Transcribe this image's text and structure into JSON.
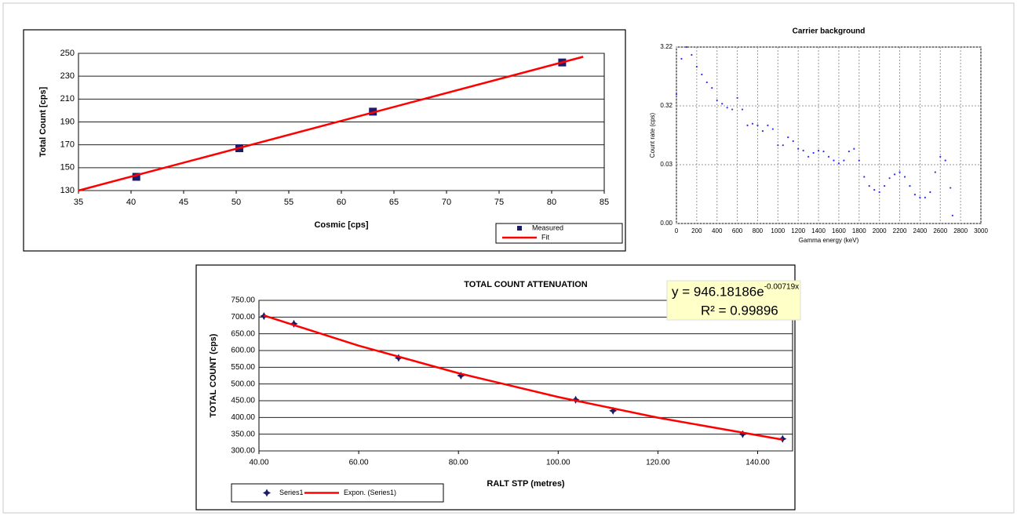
{
  "chart_data": [
    {
      "type": "scatter",
      "xlabel": "Cosmic [cps]",
      "ylabel": "Total Count [cps]",
      "xlim": [
        35,
        85
      ],
      "ylim": [
        130,
        250
      ],
      "xticks": [
        35,
        40,
        45,
        50,
        55,
        60,
        65,
        70,
        75,
        80,
        85
      ],
      "yticks": [
        130,
        150,
        170,
        190,
        210,
        230,
        250
      ],
      "grid": "y",
      "grid_style": "solid",
      "legend": "bottom-right",
      "series": [
        {
          "name": "Measured",
          "type": "scatter",
          "marker": "square",
          "color": "#1c1c6e",
          "x": [
            40.5,
            50.3,
            63,
            81
          ],
          "values": [
            142,
            167,
            199,
            242
          ]
        },
        {
          "name": "Fit",
          "type": "line",
          "color": "#ff0000",
          "x": [
            35,
            83
          ],
          "values": [
            130,
            247
          ]
        }
      ]
    },
    {
      "type": "scatter",
      "title": "Carrier background",
      "xlabel": "Gamma energy (keV)",
      "ylabel": "Count rate (cps)",
      "log": true,
      "xlim": [
        0,
        3000
      ],
      "ylim": [
        0.00322,
        3.22
      ],
      "xticks": [
        0,
        200,
        400,
        600,
        800,
        1000,
        1200,
        1400,
        1600,
        1800,
        2000,
        2200,
        2400,
        2600,
        2800,
        3000
      ],
      "yticks": [
        {
          "value": 0.00322,
          "label": "0.00"
        },
        {
          "value": 0.0322,
          "label": "0.03"
        },
        {
          "value": 0.322,
          "label": "0.32"
        },
        3.22
      ],
      "grid": "both",
      "grid_style": "dotted",
      "series": [
        {
          "type": "scatter",
          "marker": "dot",
          "color": "#2b2bff",
          "x": [
            0,
            50,
            100,
            150,
            200,
            250,
            300,
            350,
            400,
            450,
            500,
            550,
            600,
            650,
            700,
            750,
            800,
            850,
            900,
            950,
            1000,
            1050,
            1100,
            1150,
            1200,
            1250,
            1300,
            1350,
            1400,
            1450,
            1500,
            1550,
            1600,
            1650,
            1700,
            1750,
            1800,
            1850,
            1900,
            1950,
            2000,
            2050,
            2100,
            2150,
            2200,
            2250,
            2300,
            2350,
            2400,
            2450,
            2500,
            2550,
            2600,
            2650,
            2700,
            2720
          ],
          "values": [
            0.51,
            2.03,
            3.22,
            2.37,
            1.49,
            1.1,
            0.81,
            0.65,
            0.4,
            0.35,
            0.3,
            0.28,
            0.44,
            0.28,
            0.15,
            0.16,
            0.15,
            0.12,
            0.15,
            0.13,
            0.069,
            0.069,
            0.094,
            0.081,
            0.06,
            0.056,
            0.044,
            0.051,
            0.056,
            0.054,
            0.044,
            0.038,
            0.034,
            0.038,
            0.054,
            0.06,
            0.038,
            0.02,
            0.014,
            0.012,
            0.011,
            0.014,
            0.019,
            0.022,
            0.024,
            0.02,
            0.014,
            0.01,
            0.0089,
            0.0089,
            0.011,
            0.024,
            0.044,
            0.038,
            0.013,
            0.0044
          ]
        }
      ]
    },
    {
      "type": "scatter",
      "title": "TOTAL COUNT ATTENUATION",
      "xlabel": "RALT STP (metres)",
      "ylabel": "TOTAL COUNT (cps)",
      "xlim": [
        40,
        147
      ],
      "ylim": [
        300,
        750
      ],
      "xticks": [
        {
          "value": 40,
          "label": "40.00"
        },
        {
          "value": 60,
          "label": "60.00"
        },
        {
          "value": 80,
          "label": "80.00"
        },
        {
          "value": 100,
          "label": "100.00"
        },
        {
          "value": 120,
          "label": "120.00"
        },
        {
          "value": 140,
          "label": "140.00"
        }
      ],
      "yticks": [
        {
          "value": 300,
          "label": "300.00"
        },
        {
          "value": 350,
          "label": "350.00"
        },
        {
          "value": 400,
          "label": "400.00"
        },
        {
          "value": 450,
          "label": "450.00"
        },
        {
          "value": 500,
          "label": "500.00"
        },
        {
          "value": 550,
          "label": "550.00"
        },
        {
          "value": 600,
          "label": "600.00"
        },
        {
          "value": 650,
          "label": "650.00"
        },
        {
          "value": 700,
          "label": "700.00"
        },
        {
          "value": 750,
          "label": "750.00"
        }
      ],
      "grid": "y",
      "grid_style": "solid",
      "legend": "bottom-left",
      "annotations": {
        "equation": "y = 946.18186e",
        "exponent": "-0.00719x",
        "r_squared": "R² = 0.99896"
      },
      "series": [
        {
          "name": "Series1",
          "type": "scatter",
          "marker": "star",
          "color": "#1c1c6e",
          "x": [
            41,
            47,
            68,
            80.5,
            103.5,
            111,
            137,
            145
          ],
          "values": [
            703,
            680,
            578,
            525,
            453,
            420,
            350,
            336
          ]
        },
        {
          "name": "Expon. (Series1)",
          "type": "line",
          "color": "#ff0000",
          "x": [
            41,
            60,
            80,
            100,
            120,
            145
          ],
          "values": [
            704.6,
            614.6,
            532.3,
            461.1,
            399.3,
            333.6
          ]
        }
      ]
    }
  ]
}
